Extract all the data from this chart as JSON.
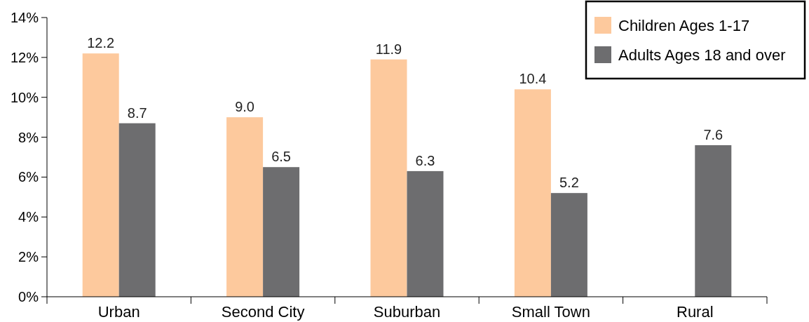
{
  "chart_data": {
    "type": "bar",
    "categories": [
      "Urban",
      "Second City",
      "Suburban",
      "Small Town",
      "Rural"
    ],
    "series": [
      {
        "name": "Children Ages 1-17",
        "color": "#fdc99d",
        "values": [
          12.2,
          9.0,
          11.9,
          10.4,
          null
        ]
      },
      {
        "name": "Adults Ages 18 and over",
        "color": "#6d6d6f",
        "values": [
          8.7,
          6.5,
          6.3,
          5.2,
          7.6
        ]
      }
    ],
    "ylim": [
      0,
      14
    ],
    "yticks": [
      {
        "value": 0,
        "label": "0%"
      },
      {
        "value": 2,
        "label": "2%"
      },
      {
        "value": 4,
        "label": "4%"
      },
      {
        "value": 6,
        "label": "6%"
      },
      {
        "value": 8,
        "label": "8%"
      },
      {
        "value": 10,
        "label": "10%"
      },
      {
        "value": 12,
        "label": "12%"
      },
      {
        "value": 14,
        "label": "14%"
      }
    ],
    "value_labels": [
      [
        "12.2",
        "9.0",
        "11.9",
        "10.4",
        null
      ],
      [
        "8.7",
        "6.5",
        "6.3",
        "5.2",
        "7.6"
      ]
    ],
    "legend": "top right",
    "grid": false
  }
}
